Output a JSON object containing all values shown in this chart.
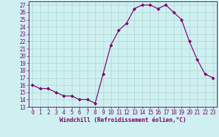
{
  "x": [
    0,
    1,
    2,
    3,
    4,
    5,
    6,
    7,
    8,
    9,
    10,
    11,
    12,
    13,
    14,
    15,
    16,
    17,
    18,
    19,
    20,
    21,
    22,
    23
  ],
  "y": [
    16,
    15.5,
    15.5,
    15,
    14.5,
    14.5,
    14,
    14,
    13.5,
    17.5,
    21.5,
    23.5,
    24.5,
    26.5,
    27,
    27,
    26.5,
    27,
    26,
    25,
    22,
    19.5,
    17.5,
    17
  ],
  "line_color": "#7B0070",
  "marker": "D",
  "markersize": 2.2,
  "linewidth": 0.9,
  "bg_color": "#cff0f0",
  "grid_color": "#b0d8d8",
  "xlabel": "Windchill (Refroidissement éolien,°C)",
  "xlabel_color": "#7B0070",
  "xlabel_fontsize": 6.0,
  "tick_color": "#7B0070",
  "tick_fontsize": 5.5,
  "ylim": [
    13,
    27.5
  ],
  "xlim": [
    -0.5,
    23.5
  ],
  "yticks": [
    13,
    14,
    15,
    16,
    17,
    18,
    19,
    20,
    21,
    22,
    23,
    24,
    25,
    26,
    27
  ],
  "xticks": [
    0,
    1,
    2,
    3,
    4,
    5,
    6,
    7,
    8,
    9,
    10,
    11,
    12,
    13,
    14,
    15,
    16,
    17,
    18,
    19,
    20,
    21,
    22,
    23
  ],
  "spine_color": "#7B0070"
}
